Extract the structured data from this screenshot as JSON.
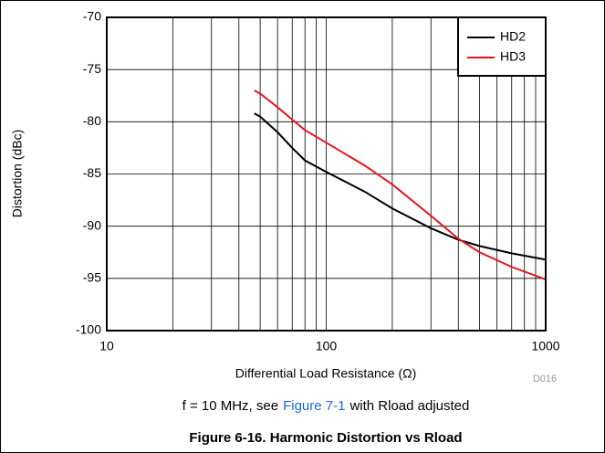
{
  "chart_data": {
    "type": "line",
    "title": "Figure 6-16. Harmonic Distortion vs Rload",
    "caption": {
      "before": "f = 10 MHz, see",
      "link": "Figure 7-1",
      "after": "with Rload adjusted"
    },
    "code": "D016",
    "xlabel": "Differential Load Resistance (Ω)",
    "ylabel": "Distortion (dBc)",
    "xscale": "log",
    "xlim": [
      10,
      1000
    ],
    "xticks": [
      10,
      100,
      1000
    ],
    "xminor": [
      20,
      30,
      40,
      50,
      60,
      70,
      80,
      90,
      200,
      300,
      400,
      500,
      600,
      700,
      800,
      900
    ],
    "ylim": [
      -100,
      -70
    ],
    "yticks": [
      -100,
      -95,
      -90,
      -85,
      -80,
      -75,
      -70
    ],
    "grid": true,
    "legend": "upper right",
    "series": [
      {
        "name": "HD2",
        "color": "#000000",
        "x": [
          47,
          50,
          60,
          70,
          80,
          100,
          150,
          200,
          300,
          400,
          500,
          700,
          1000
        ],
        "values": [
          -79.2,
          -79.5,
          -81,
          -82.5,
          -83.7,
          -84.8,
          -86.7,
          -88.3,
          -90.2,
          -91.3,
          -91.9,
          -92.6,
          -93.2
        ]
      },
      {
        "name": "HD3",
        "color": "#e8141c",
        "x": [
          47,
          50,
          60,
          70,
          80,
          100,
          150,
          200,
          300,
          400,
          500,
          700,
          1000
        ],
        "values": [
          -77,
          -77.3,
          -78.6,
          -79.8,
          -80.8,
          -82,
          -84.2,
          -86,
          -89,
          -91.2,
          -92.5,
          -93.9,
          -95.1
        ]
      }
    ]
  }
}
